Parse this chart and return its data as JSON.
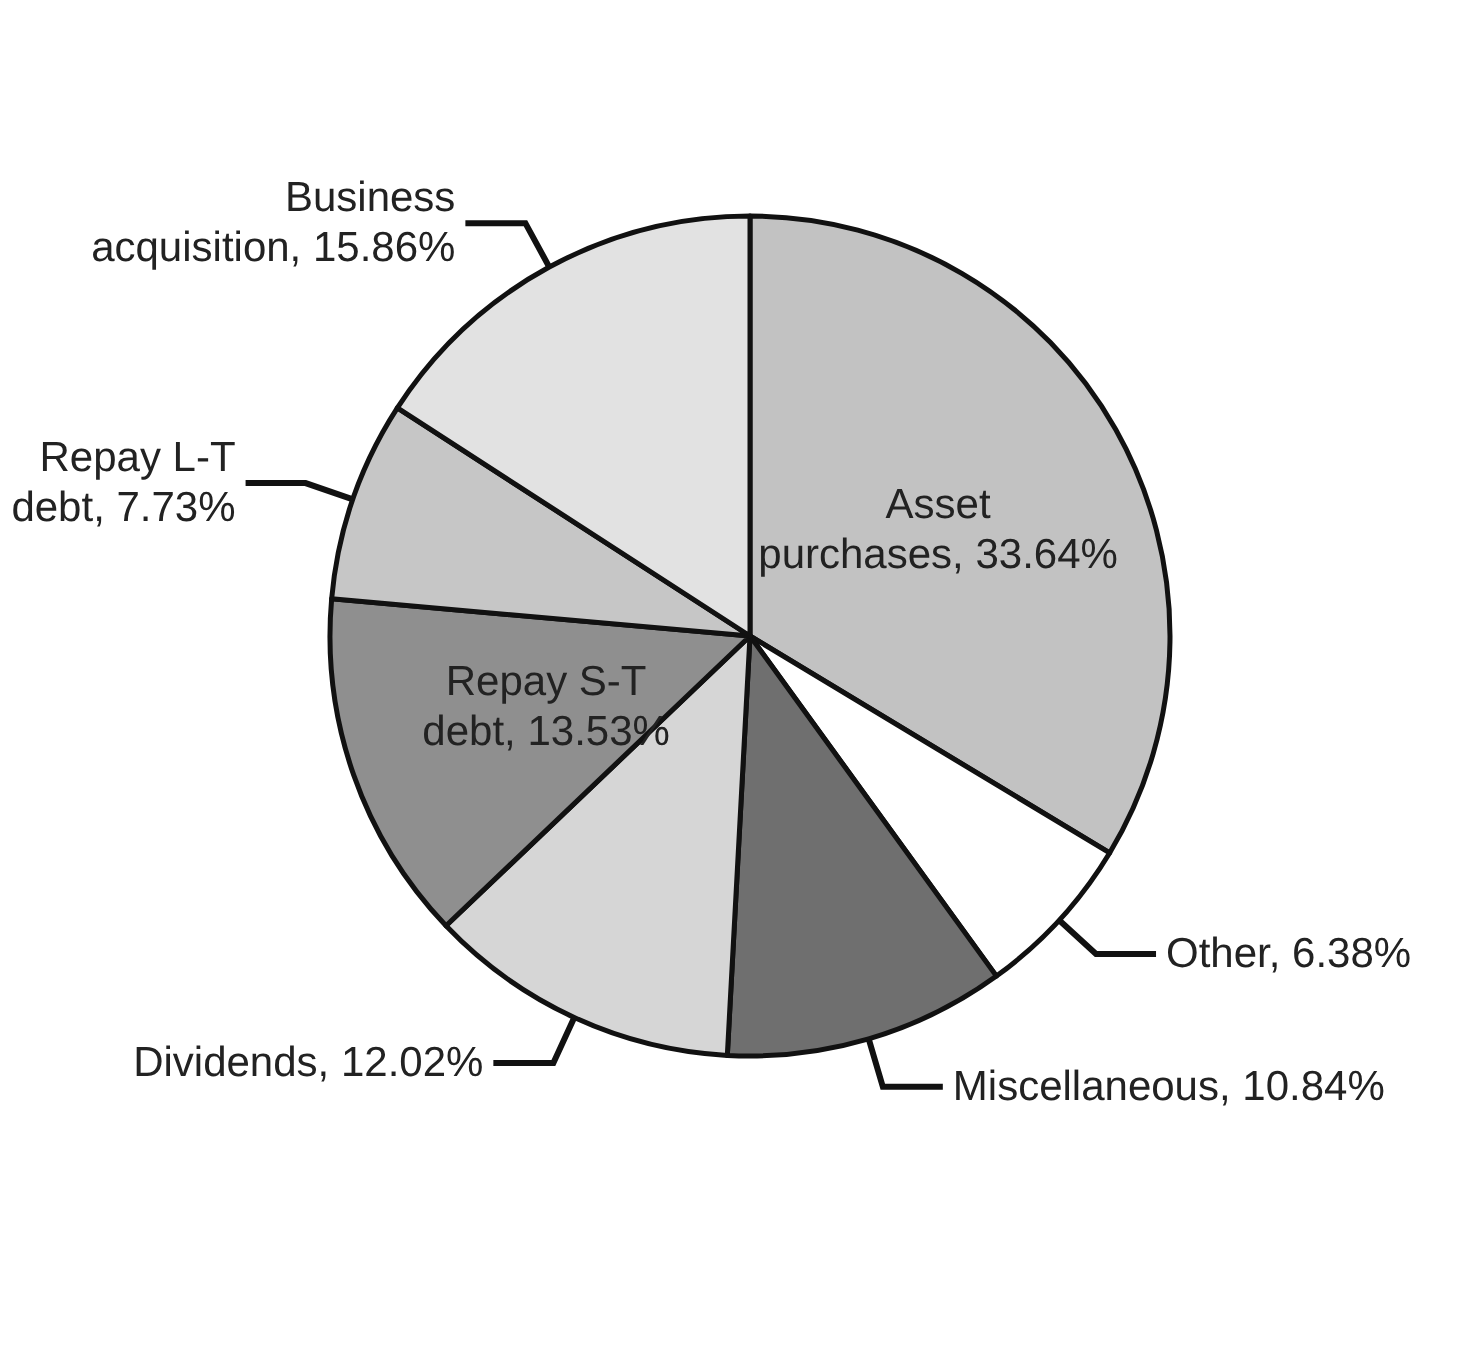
{
  "chart_data": {
    "type": "pie",
    "categories": [
      "Asset purchases",
      "Other",
      "Miscellaneous",
      "Dividends",
      "Repay S-T debt",
      "Repay L-T debt",
      "Business acquisition"
    ],
    "values": [
      33.64,
      6.38,
      10.84,
      12.02,
      13.53,
      7.73,
      15.86
    ],
    "value_labels": [
      "33.64%",
      "6.38%",
      "10.84%",
      "12.02%",
      "13.53%",
      "7.73%",
      "15.86%"
    ],
    "colors": [
      "#c2c2c2",
      "#ffffff",
      "#6f6f6f",
      "#d6d6d6",
      "#8f8f8f",
      "#c6c6c6",
      "#e2e2e2"
    ],
    "legend": false
  }
}
